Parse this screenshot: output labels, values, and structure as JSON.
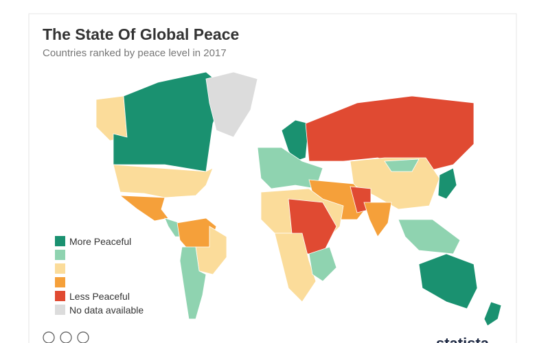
{
  "header": {
    "title": "The State Of Global Peace",
    "subtitle": "Countries ranked by peace level in 2017"
  },
  "legend": [
    {
      "color": "#1a9170",
      "label": "More Peaceful"
    },
    {
      "color": "#8fd3b0"
    },
    {
      "color": "#fbdc9a"
    },
    {
      "color": "#f5a03a"
    },
    {
      "color": "#e04a32",
      "label": "Less Peaceful"
    },
    {
      "color": "#dcdcdc",
      "label": "No data available"
    }
  ],
  "footer": {
    "brand": "statista"
  }
}
